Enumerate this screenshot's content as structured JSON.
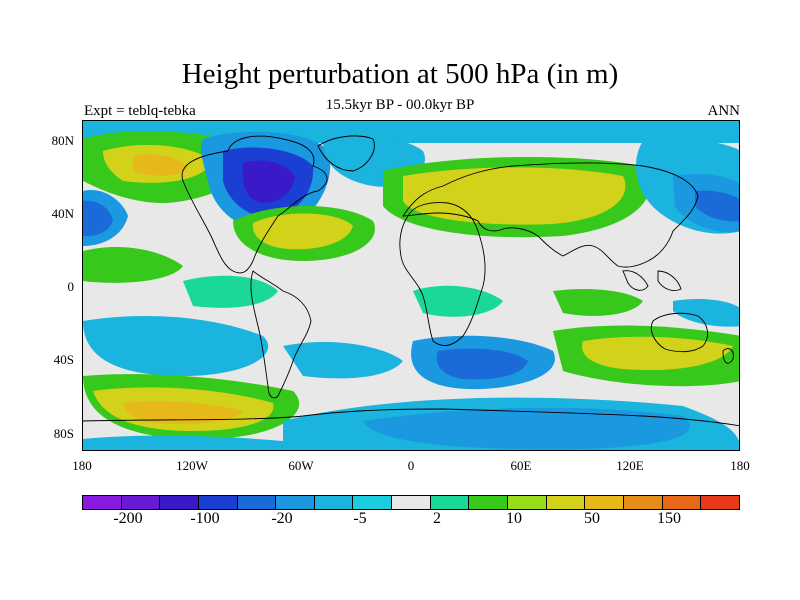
{
  "title": "Height perturbation at 500 hPa (in m)",
  "subtitle": "15.5kyr BP - 00.0kyr BP",
  "left_label": "Expt = teblq-tebka",
  "right_label": "ANN",
  "map": {
    "lat_ticks": [
      "80N",
      "40N",
      "0",
      "40S",
      "80S"
    ],
    "lon_ticks": [
      "180",
      "120W",
      "60W",
      "0",
      "60E",
      "120E",
      "180"
    ],
    "lat_range": [
      -90,
      90
    ],
    "lon_range": [
      -180,
      180
    ]
  },
  "colorbar": {
    "colors": [
      "#8a1ae0",
      "#6a1ad6",
      "#3a1ac8",
      "#1a3fd2",
      "#1a6ad8",
      "#1a98e0",
      "#1ab4de",
      "#1acee0",
      "#e8e8e8",
      "#1ad89a",
      "#36c81a",
      "#96dc1a",
      "#d2d21a",
      "#e6b81a",
      "#e68c1a",
      "#e8681a",
      "#e63a1a"
    ],
    "labels": [
      "-200",
      "-100",
      "-20",
      "-5",
      "2",
      "10",
      "50",
      "150"
    ]
  },
  "colors": {
    "land_outline": "#000000",
    "background": "#ffffff"
  }
}
